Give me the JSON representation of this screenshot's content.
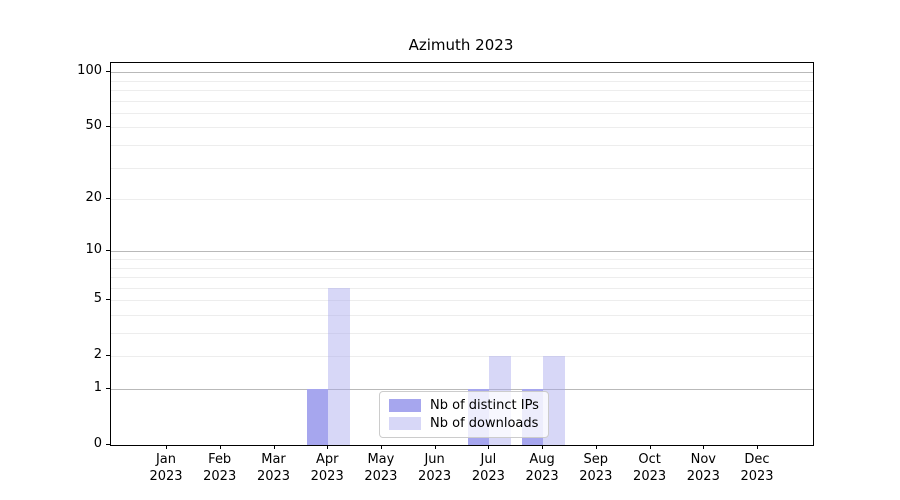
{
  "chart_data": {
    "type": "bar",
    "title": "Azimuth 2023",
    "categories": [
      "Jan",
      "Feb",
      "Mar",
      "Apr",
      "May",
      "Jun",
      "Jul",
      "Aug",
      "Sep",
      "Oct",
      "Nov",
      "Dec"
    ],
    "year_label": "2023",
    "series": [
      {
        "name": "Nb of distinct IPs",
        "color": "#a6a6ee",
        "values": [
          0,
          0,
          0,
          1,
          0,
          0,
          1,
          1,
          0,
          0,
          0,
          0
        ]
      },
      {
        "name": "Nb of downloads",
        "color": "rgba(166,166,238,0.45)",
        "values": [
          0,
          0,
          0,
          6,
          0,
          0,
          2,
          2,
          0,
          0,
          0,
          0
        ]
      }
    ],
    "yscale": "log1p",
    "ylim": [
      0,
      112
    ],
    "y_ticks": [
      0,
      1,
      2,
      5,
      10,
      20,
      50,
      100
    ],
    "grid_major": [
      1,
      10,
      100
    ],
    "grid_minor": [
      2,
      3,
      4,
      5,
      6,
      7,
      8,
      9,
      20,
      30,
      40,
      50,
      60,
      70,
      80,
      90
    ],
    "grid": "on",
    "legend_position": "lower center",
    "colors": {
      "ips_bar": "#a6a6ee",
      "downloads_bar": "rgba(166,166,238,0.45)",
      "grid_major": "#b9b9b9",
      "grid_minor": "#ededed",
      "spine": "#000000",
      "legend_border": "#cccccc"
    }
  }
}
